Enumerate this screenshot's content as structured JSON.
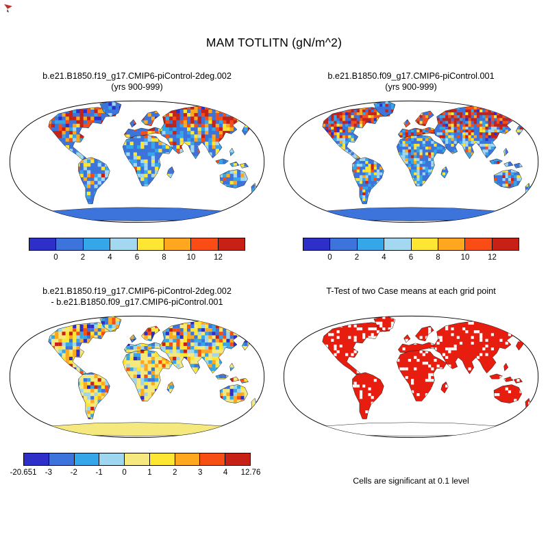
{
  "title": "MAM TOTLITN (gN/m^2)",
  "panels": [
    {
      "title_line1": "b.e21.B1850.f19_g17.CMIP6-piControl-2deg.002",
      "title_line2": "(yrs 900-999)"
    },
    {
      "title_line1": "b.e21.B1850.f09_g17.CMIP6-piControl.001",
      "title_line2": "(yrs 900-999)"
    },
    {
      "title_line1": "b.e21.B1850.f19_g17.CMIP6-piControl-2deg.002",
      "title_line2": "- b.e21.B1850.f09_g17.CMIP6-piControl.001"
    },
    {
      "title_line1": "T-Test of two Case means at each grid point",
      "caption": "Cells are significant at 0.1 level"
    }
  ],
  "colorbars": {
    "absolute": {
      "colors": [
        "#2E2EC8",
        "#3C74DC",
        "#35A6E8",
        "#A4D8F0",
        "#FFE633",
        "#FFA81F",
        "#FA4D15",
        "#C62114"
      ],
      "tick_labels": [
        "0",
        "2",
        "4",
        "6",
        "8",
        "10",
        "12"
      ]
    },
    "difference": {
      "colors": [
        "#2E2EC8",
        "#3C74DC",
        "#35A6E8",
        "#9ED6F0",
        "#F4E87E",
        "#FFE633",
        "#FFA81F",
        "#F74E14",
        "#C62114"
      ],
      "tick_labels": [
        "-20.651",
        "-3",
        "-2",
        "-1",
        "0",
        "1",
        "2",
        "3",
        "4",
        "12.76"
      ]
    }
  },
  "map_colors": {
    "ocean": "#FFFFFF",
    "land_base_absolute": "#3C74DC",
    "land_base_difference": "#F4E87E",
    "significant_red": "#E71D0F",
    "outline": "#000000",
    "corner_mark": "#C03028"
  },
  "chart_data": [
    {
      "type": "heatmap",
      "panel": "top-left",
      "title": "b.e21.B1850.f19_g17.CMIP6-piControl-2deg.002 (yrs 900-999)",
      "season": "MAM",
      "variable": "TOTLITN",
      "units": "gN/m^2",
      "projection": "robinson",
      "legend_position": "bottom",
      "colorbar_tick_values": [
        0,
        2,
        4,
        6,
        8,
        10,
        12
      ],
      "colorbar_colors": [
        "#2E2EC8",
        "#3C74DC",
        "#35A6E8",
        "#A4D8F0",
        "#FFE633",
        "#FFA81F",
        "#FA4D15",
        "#C62114"
      ],
      "pattern_summary": "High values (>12, red) over boreal North America, Europe, Tibet and Siberia; low values (0-2, blue) over Greenland, Antarctica and much land; mixed 2-8 (cyan/light blue/yellow) across tropics and southern continents; ocean masked white."
    },
    {
      "type": "heatmap",
      "panel": "top-right",
      "title": "b.e21.B1850.f09_g17.CMIP6-piControl.001 (yrs 900-999)",
      "season": "MAM",
      "variable": "TOTLITN",
      "units": "gN/m^2",
      "projection": "robinson",
      "legend_position": "bottom",
      "colorbar_tick_values": [
        0,
        2,
        4,
        6,
        8,
        10,
        12
      ],
      "colorbar_colors": [
        "#2E2EC8",
        "#3C74DC",
        "#35A6E8",
        "#A4D8F0",
        "#FFE633",
        "#FFA81F",
        "#FA4D15",
        "#C62114"
      ],
      "pattern_summary": "Finer 1-degree grid; same palette and similar pattern: red boreal band, blue tropics/ice sheets, scattered warm cells at coasts."
    },
    {
      "type": "heatmap",
      "panel": "bottom-left",
      "title": "b.e21.B1850.f19_g17.CMIP6-piControl-2deg.002 - b.e21.B1850.f09_g17.CMIP6-piControl.001",
      "projection": "robinson",
      "min": -20.651,
      "max": 12.76,
      "colorbar_tick_values": [
        -20.651,
        -3,
        -2,
        -1,
        0,
        1,
        2,
        3,
        4,
        12.76
      ],
      "colorbar_colors": [
        "#2E2EC8",
        "#3C74DC",
        "#35A6E8",
        "#9ED6F0",
        "#F4E87E",
        "#FFE633",
        "#FFA81F",
        "#F74E14",
        "#C62114"
      ],
      "pattern_summary": "Differences mostly between -1 and 1 (pale yellow) with dense noisy positive/negative speckle, strongest in northern mid and high latitudes; Antarctica near zero."
    },
    {
      "type": "map",
      "panel": "bottom-right",
      "title": "T-Test of two Case means at each grid point",
      "projection": "robinson",
      "significance_level": 0.1,
      "caption": "Cells are significant at 0.1 level",
      "significant_color": "#E71D0F",
      "pattern_summary": "Nearly all land grid cells significant (solid red) with scattered non-significant white cells; Antarctica not shaded."
    }
  ]
}
